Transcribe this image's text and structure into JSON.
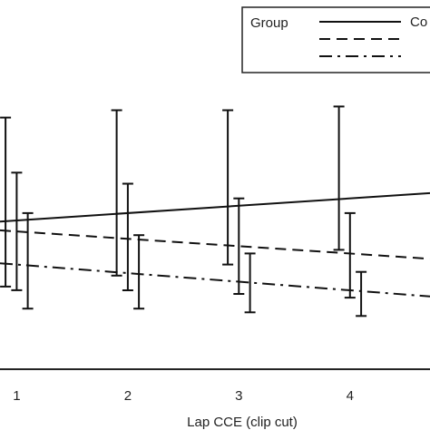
{
  "chart_data": {
    "type": "line",
    "xlabel": "Lap CCE (clip cut)",
    "ylabel": "",
    "x": [
      1,
      2,
      3,
      4
    ],
    "x_ticks": [
      "1",
      "2",
      "3",
      "4"
    ],
    "xlim": [
      0.85,
      4.72
    ],
    "ylim": [
      0,
      1
    ],
    "grid": false,
    "legend": {
      "title": "Group",
      "position": "top-right",
      "entries": [
        {
          "label": "Co",
          "dash": "solid"
        },
        {
          "label": "",
          "dash": "dashed"
        },
        {
          "label": "",
          "dash": "dashdot"
        }
      ]
    },
    "series": [
      {
        "dash": "solid",
        "x_offset": -0.1,
        "values": [
          0.4,
          0.42,
          0.44,
          0.46
        ],
        "err_low": [
          0.18,
          0.17,
          0.16,
          0.14
        ],
        "err_high": [
          0.28,
          0.28,
          0.26,
          0.25
        ]
      },
      {
        "dash": "dashed",
        "x_offset": 0,
        "values": [
          0.37,
          0.35,
          0.33,
          0.31
        ],
        "err_low": [
          0.16,
          0.14,
          0.13,
          0.12
        ],
        "err_high": [
          0.16,
          0.15,
          0.13,
          0.11
        ]
      },
      {
        "dash": "dashdot",
        "x_offset": 0.1,
        "values": [
          0.28,
          0.26,
          0.23,
          0.21
        ],
        "err_low": [
          0.12,
          0.1,
          0.08,
          0.07
        ],
        "err_high": [
          0.14,
          0.1,
          0.08,
          0.05
        ]
      }
    ]
  }
}
